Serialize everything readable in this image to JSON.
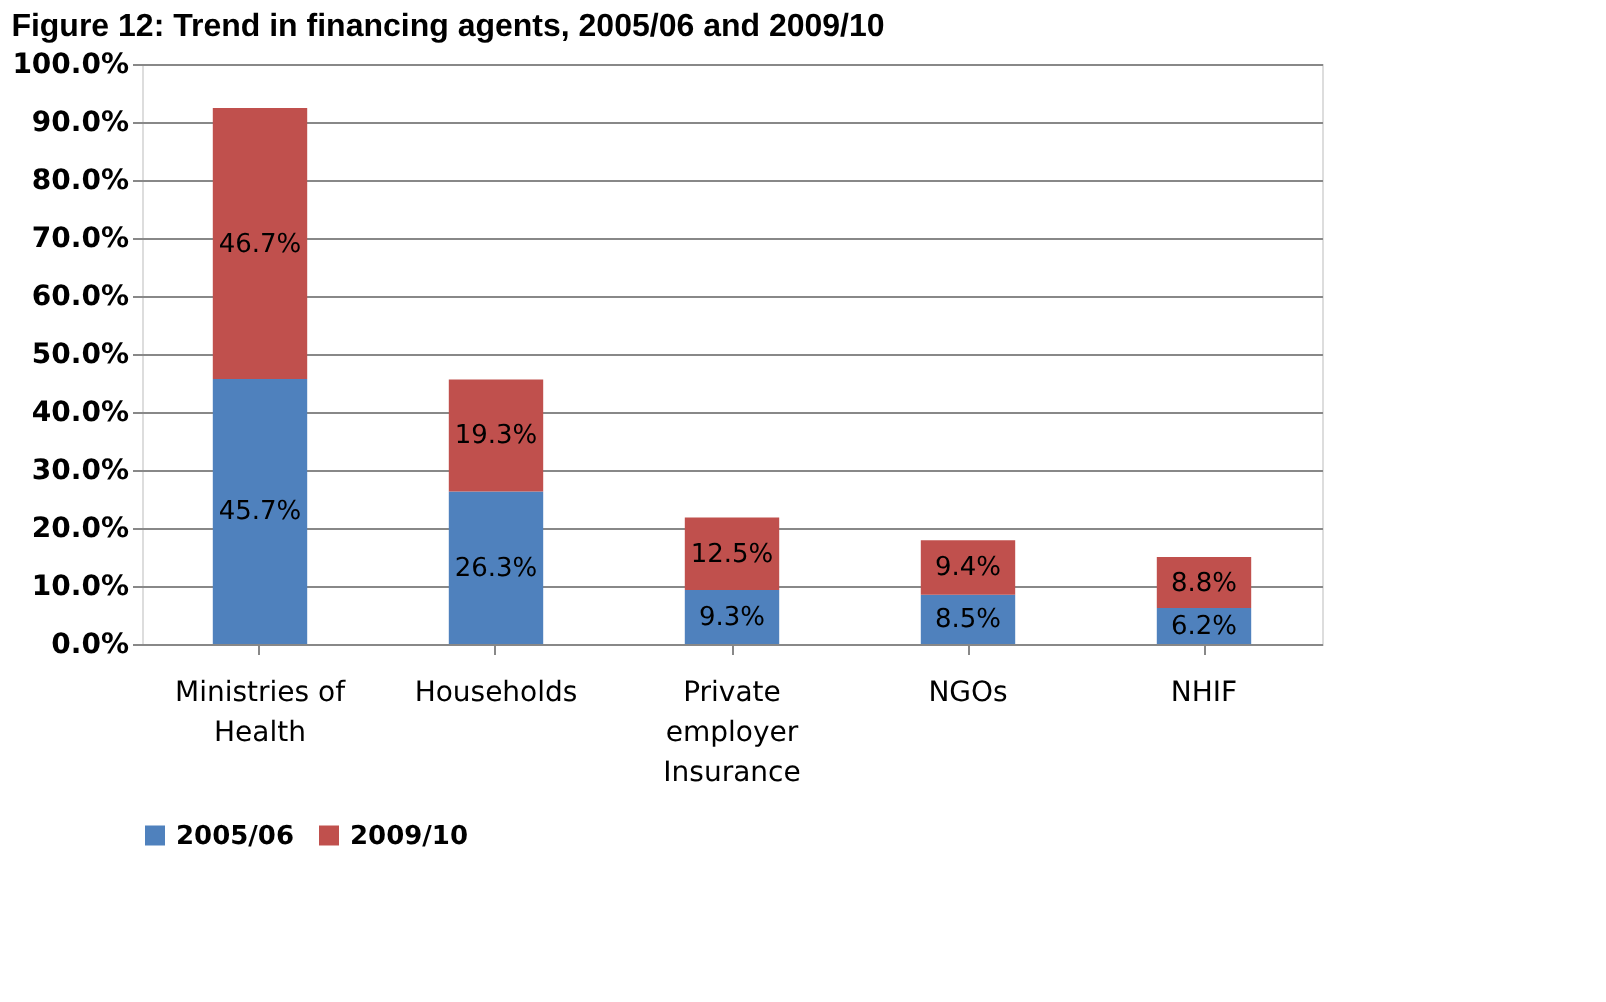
{
  "chart_data": {
    "type": "bar",
    "title": "Figure 12: Trend in financing agents, 2005/06 and 2009/10",
    "categories": [
      "Ministries of Health",
      "Households",
      "Private employer Insurance",
      "NGOs",
      "NHIF"
    ],
    "series": [
      {
        "name": "2005/06",
        "color": "#4f81bd",
        "values": [
          45.7,
          26.3,
          9.3,
          8.5,
          6.2
        ],
        "value_labels": [
          "45.7%",
          "26.3%",
          "9.3%",
          "8.5%",
          "6.2%"
        ]
      },
      {
        "name": "2009/10",
        "color": "#c0504d",
        "values": [
          46.7,
          19.3,
          12.5,
          9.4,
          8.8
        ],
        "value_labels": [
          "46.7%",
          "19.3%",
          "12.5%",
          "9.4%",
          "8.8%"
        ]
      }
    ],
    "stacked": true,
    "ylim": [
      0,
      100
    ],
    "yticks": [
      {
        "value": 0,
        "label": "0.0%"
      },
      {
        "value": 10,
        "label": "10.0%"
      },
      {
        "value": 20,
        "label": "20.0%"
      },
      {
        "value": 30,
        "label": "30.0%"
      },
      {
        "value": 40,
        "label": "40.0%"
      },
      {
        "value": 50,
        "label": "50.0%"
      },
      {
        "value": 60,
        "label": "60.0%"
      },
      {
        "value": 70,
        "label": "70.0%"
      },
      {
        "value": 80,
        "label": "80.0%"
      },
      {
        "value": 90,
        "label": "90.0%"
      },
      {
        "value": 100,
        "label": "100.0%"
      }
    ],
    "grid": "y",
    "legend": "bottom"
  }
}
